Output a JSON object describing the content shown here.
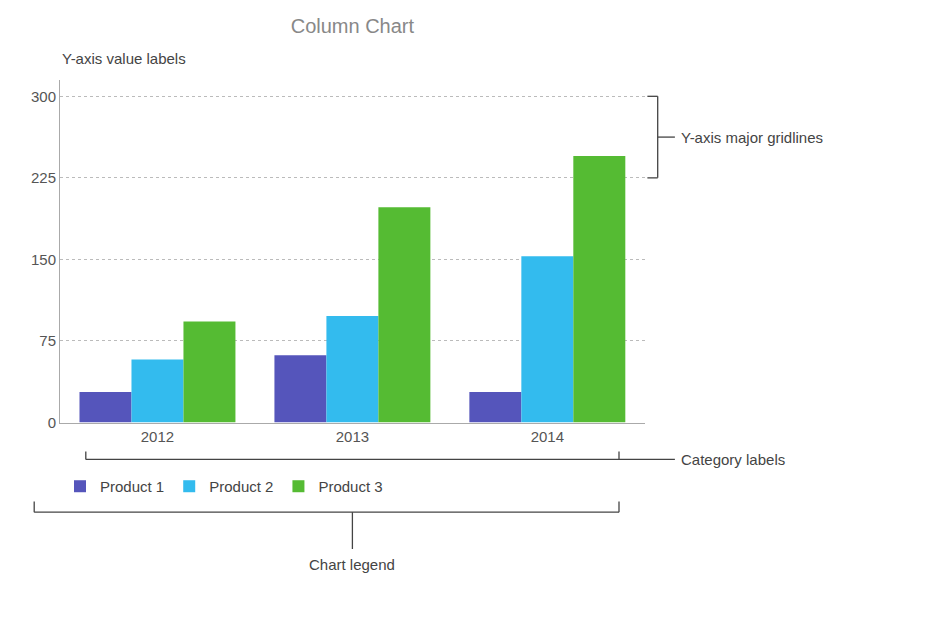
{
  "chart_data": {
    "type": "bar",
    "title": "Column Chart",
    "categories": [
      "2012",
      "2013",
      "2014"
    ],
    "series": [
      {
        "name": "Product 1",
        "values": [
          28,
          62,
          28
        ],
        "color": "#5555BB"
      },
      {
        "name": "Product 2",
        "values": [
          58,
          98,
          153
        ],
        "color": "#33BBEE"
      },
      {
        "name": "Product 3",
        "values": [
          93,
          198,
          245
        ],
        "color": "#55BB33"
      }
    ],
    "ylim": [
      0,
      315
    ],
    "yticks": [
      0,
      75,
      150,
      225,
      300
    ],
    "grid": true,
    "legend": "bottom",
    "annotations": [
      "Y-axis value labels",
      "Y-axis major gridlines",
      "Category labels",
      "Chart legend"
    ]
  }
}
